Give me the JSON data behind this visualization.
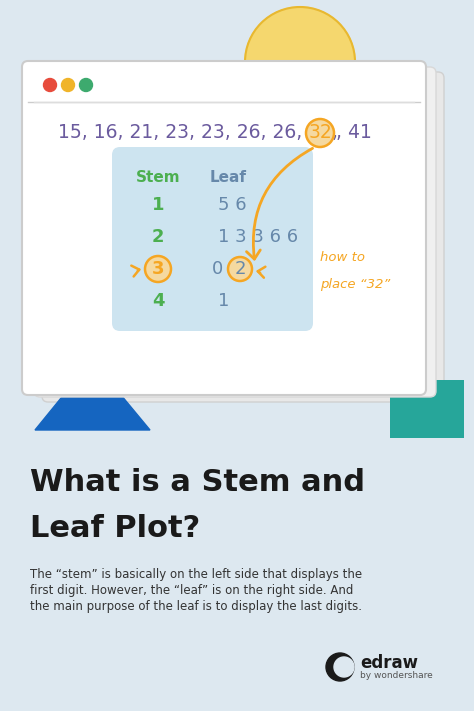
{
  "bg_color": "#dde8f0",
  "data_color": "#6b5b9e",
  "highlight_32_color": "#f5a623",
  "highlight_32_fill": "#f5d9a0",
  "window_bg": "#ffffff",
  "window_border": "#cccccc",
  "window_shadow1_color": "#e8e8e8",
  "window_shadow2_color": "#f0f0f0",
  "topbar_color": "#f7f7f7",
  "table_bg": "#cde4f0",
  "stem_header_color": "#4caf50",
  "stem_color": "#4caf50",
  "leaf_color": "#6688aa",
  "leaf_header_color": "#6688aa",
  "title_color": "#1a1a1a",
  "body_color": "#333333",
  "blue_triangle_color": "#1565c0",
  "green_rect_color": "#26a69a",
  "yellow_circle_color": "#f5d76e",
  "yellow_circle_border": "#e8b830",
  "btn_red": "#e74c3c",
  "btn_yellow": "#f0b429",
  "btn_green": "#3daa6e",
  "annotation_color": "#f5a623",
  "edraw_color": "#1a1a1a",
  "edraw_sub_color": "#555555",
  "stem_values": [
    "1",
    "2",
    "3",
    "4"
  ],
  "leaf_values": [
    "5 6",
    "1 3 3 6 6",
    "0 2",
    "1"
  ],
  "title_line1": "What is a Stem and",
  "title_line2": "Leaf Plot?",
  "body_line1": "The “stem” is basically on the left side that displays the",
  "body_line2": "first digit. However, the “leaf” is on the right side. And",
  "body_line3": "the main purpose of the leaf is to display the last digits.",
  "annotation_line1": "how to",
  "annotation_line2": "place “32”"
}
